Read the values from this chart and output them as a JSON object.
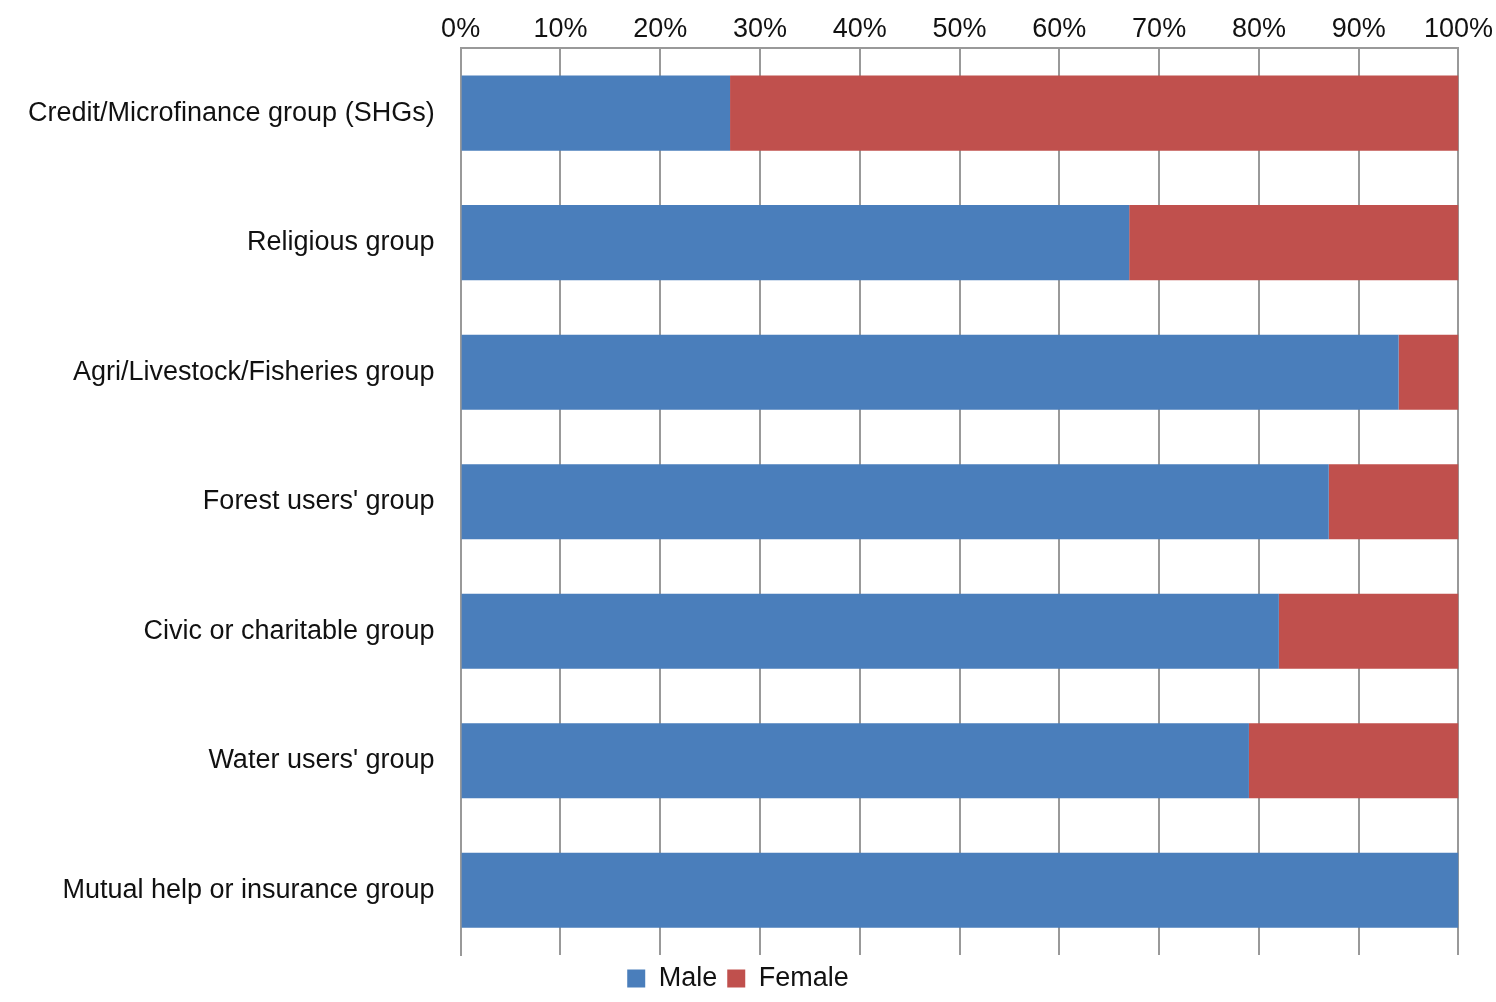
{
  "chart_data": {
    "type": "bar",
    "orientation": "horizontal",
    "stacked": true,
    "categories": [
      "Credit/Microfinance group (SHGs)",
      "Religious group",
      "Agri/Livestock/Fisheries group",
      "Forest users' group",
      "Civic or charitable group",
      "Water users' group",
      "Mutual help or insurance group"
    ],
    "series": [
      {
        "name": "Male",
        "color": "#4a7ebb",
        "values": [
          27,
          67,
          94,
          87,
          82,
          79,
          100
        ]
      },
      {
        "name": "Female",
        "color": "#c0504d",
        "values": [
          73,
          33,
          6,
          13,
          18,
          21,
          0
        ]
      }
    ],
    "xlim": [
      0,
      100
    ],
    "xticks": [
      {
        "value": 0,
        "label": "0%"
      },
      {
        "value": 10,
        "label": "10%"
      },
      {
        "value": 20,
        "label": "20%"
      },
      {
        "value": 30,
        "label": "30%"
      },
      {
        "value": 40,
        "label": "40%"
      },
      {
        "value": 50,
        "label": "50%"
      },
      {
        "value": 60,
        "label": "60%"
      },
      {
        "value": 70,
        "label": "70%"
      },
      {
        "value": 80,
        "label": "80%"
      },
      {
        "value": 90,
        "label": "90%"
      },
      {
        "value": 100,
        "label": "100%"
      }
    ],
    "grid": "x",
    "legend": "bottom"
  }
}
